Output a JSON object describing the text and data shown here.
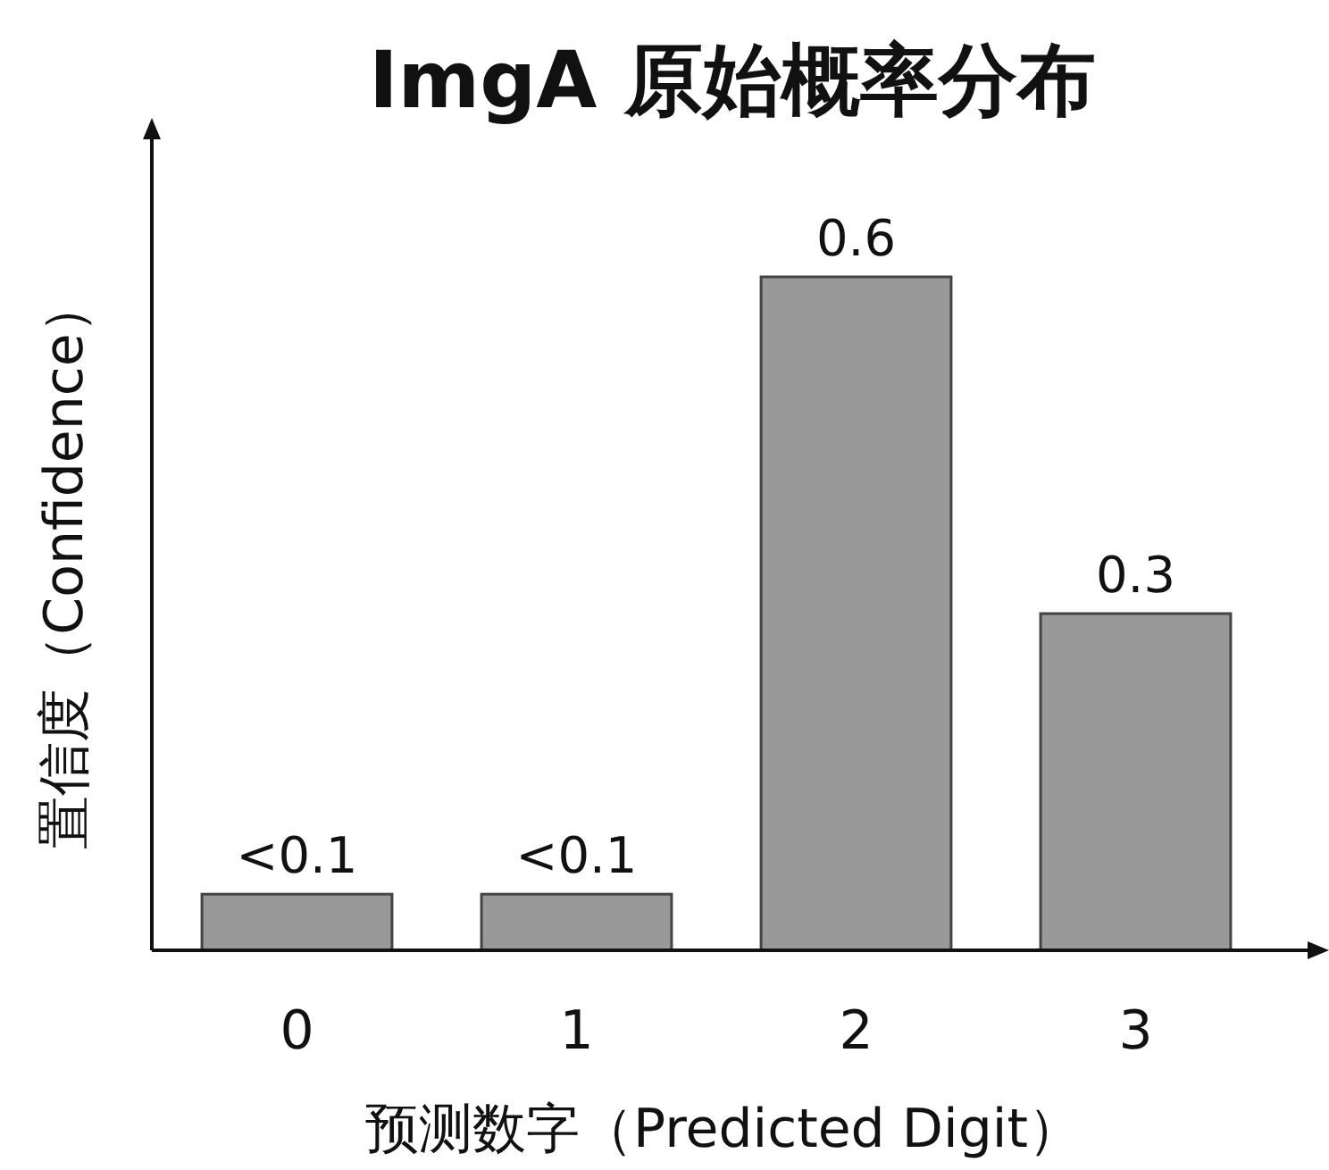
{
  "chart_data": {
    "type": "bar",
    "title": "**ImgA** 原始概率分布",
    "xlabel": "预测数字（Predicted Digit）",
    "ylabel": "置信度（Confidence）",
    "categories": [
      "0",
      "1",
      "2",
      "3"
    ],
    "values": [
      0.05,
      0.05,
      0.6,
      0.3
    ],
    "value_labels": [
      "<0.1",
      "<0.1",
      "0.6",
      "0.3"
    ],
    "color": "#999999"
  }
}
